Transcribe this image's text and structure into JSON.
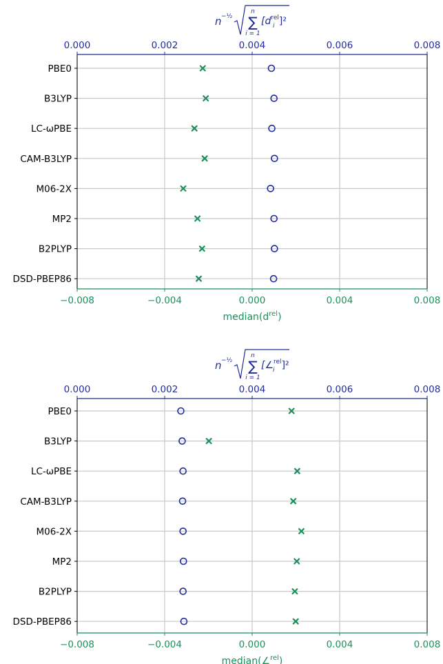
{
  "colors": {
    "top_axis": "#1f2a9c",
    "bottom_axis": "#1a8f5a",
    "circle": "#1f2a9c",
    "cross": "#1a8f5a",
    "grid": "#c8c8c8",
    "frame": "#000000"
  },
  "chart_data": [
    {
      "type": "scatter",
      "title": "",
      "top_axis": {
        "label_prefix": "n",
        "label_exponent": "−½",
        "label_sum_top": "n",
        "label_sum_bottom": "i = 1",
        "label_body": "[d",
        "label_sub": "i",
        "label_sup": "rel",
        "label_tail": "]²",
        "range": [
          0.0,
          0.008
        ],
        "ticks": [
          "0.000",
          "0.002",
          "0.004",
          "0.006",
          "0.008"
        ]
      },
      "bottom_axis": {
        "label": "median(d",
        "label_sup": "rel",
        "label_tail": ")",
        "range": [
          -0.008,
          0.008
        ],
        "ticks": [
          "−0.008",
          "−0.004",
          "0.000",
          "0.004",
          "0.008"
        ]
      },
      "categories": [
        "PBE0",
        "B3LYP",
        "LC-ωPBE",
        "CAM-B3LYP",
        "M06-2X",
        "MP2",
        "B2PLYP",
        "DSD-PBEP86"
      ],
      "grid": true,
      "series": [
        {
          "marker": "circle",
          "axis": "top",
          "values": [
            0.00444,
            0.0045,
            0.00445,
            0.00451,
            0.00442,
            0.0045,
            0.00451,
            0.00449
          ]
        },
        {
          "marker": "x",
          "axis": "bottom",
          "values": [
            -0.00226,
            -0.00212,
            -0.00264,
            -0.00217,
            -0.00315,
            -0.0025,
            -0.00229,
            -0.00244
          ]
        }
      ]
    },
    {
      "type": "scatter",
      "title": "",
      "top_axis": {
        "label_prefix": "n",
        "label_exponent": "−½",
        "label_sum_top": "n",
        "label_sum_bottom": "i = 1",
        "label_body": "[∠",
        "label_sub": "i",
        "label_sup": "rel",
        "label_tail": "]²",
        "range": [
          0.0,
          0.008
        ],
        "ticks": [
          "0.000",
          "0.002",
          "0.004",
          "0.006",
          "0.008"
        ]
      },
      "bottom_axis": {
        "label": "median(∠",
        "label_sup": "rel",
        "label_tail": ")",
        "range": [
          -0.008,
          0.008
        ],
        "ticks": [
          "−0.008",
          "−0.004",
          "0.000",
          "0.004",
          "0.008"
        ]
      },
      "categories": [
        "PBE0",
        "B3LYP",
        "LC-ωPBE",
        "CAM-B3LYP",
        "M06-2X",
        "MP2",
        "B2PLYP",
        "DSD-PBEP86"
      ],
      "grid": true,
      "series": [
        {
          "marker": "circle",
          "axis": "top",
          "values": [
            0.00237,
            0.0024,
            0.00242,
            0.00241,
            0.00242,
            0.00243,
            0.00242,
            0.00244
          ]
        },
        {
          "marker": "x",
          "axis": "bottom",
          "values": [
            0.0018,
            -0.00198,
            0.00206,
            0.00188,
            0.00225,
            0.00204,
            0.00195,
            0.00199
          ]
        }
      ]
    }
  ]
}
